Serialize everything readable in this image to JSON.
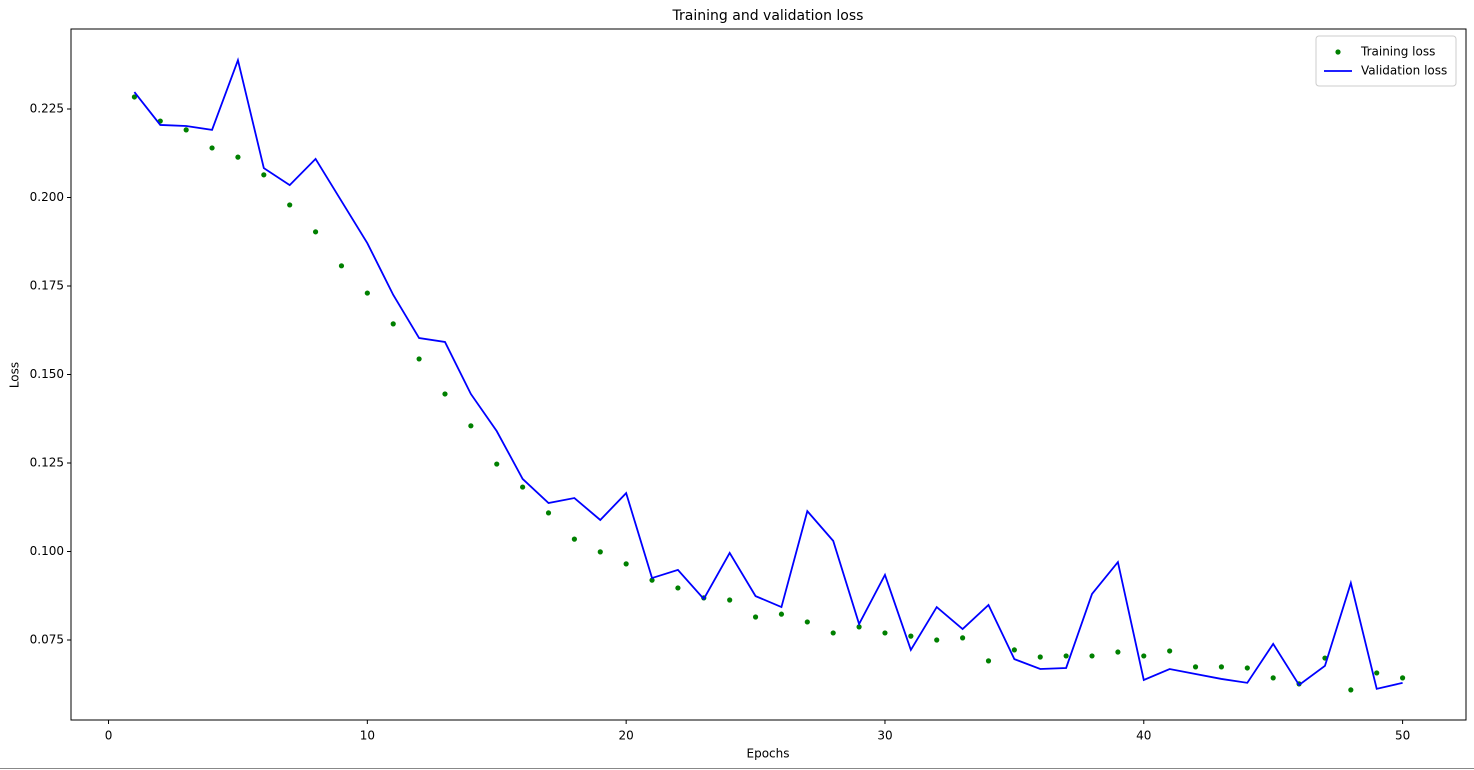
{
  "chart_data": {
    "type": "line",
    "title": "Training and validation loss",
    "x_label": "Epochs",
    "y_label": "Loss",
    "x": [
      1,
      2,
      3,
      4,
      5,
      6,
      7,
      8,
      9,
      10,
      11,
      12,
      13,
      14,
      15,
      16,
      17,
      18,
      19,
      20,
      21,
      22,
      23,
      24,
      25,
      26,
      27,
      28,
      29,
      30,
      31,
      32,
      33,
      34,
      35,
      36,
      37,
      38,
      39,
      40,
      41,
      42,
      43,
      44,
      45,
      46,
      47,
      48,
      49,
      50
    ],
    "series": [
      {
        "name": "Training loss",
        "color": "#008000",
        "mode": "markers",
        "values": [
          0.2284,
          0.2216,
          0.2191,
          0.214,
          0.2114,
          0.2064,
          0.1979,
          0.1903,
          0.1807,
          0.173,
          0.1643,
          0.1544,
          0.1445,
          0.1355,
          0.1247,
          0.1182,
          0.1109,
          0.1035,
          0.0999,
          0.0965,
          0.0919,
          0.0897,
          0.0869,
          0.0863,
          0.0815,
          0.0823,
          0.0801,
          0.077,
          0.0787,
          0.077,
          0.0761,
          0.075,
          0.0756,
          0.0691,
          0.0722,
          0.0702,
          0.0705,
          0.0705,
          0.0716,
          0.0705,
          0.0719,
          0.0674,
          0.0674,
          0.0671,
          0.0643,
          0.0626,
          0.0699,
          0.0609,
          0.0657,
          0.0643
        ]
      },
      {
        "name": "Validation loss",
        "color": "#0000ff",
        "mode": "line",
        "values": [
          0.2298,
          0.2205,
          0.2202,
          0.2191,
          0.2388,
          0.2083,
          0.2035,
          0.2109,
          0.199,
          0.1871,
          0.1725,
          0.1603,
          0.1592,
          0.1445,
          0.134,
          0.1205,
          0.1137,
          0.1151,
          0.1089,
          0.1165,
          0.0925,
          0.0948,
          0.0866,
          0.0996,
          0.0874,
          0.0843,
          0.1114,
          0.103,
          0.0795,
          0.0934,
          0.0722,
          0.0843,
          0.0781,
          0.0849,
          0.0696,
          0.0668,
          0.0671,
          0.088,
          0.097,
          0.0637,
          0.0668,
          0.0654,
          0.064,
          0.0629,
          0.0739,
          0.0623,
          0.0677,
          0.0911,
          0.0612,
          0.0629
        ]
      }
    ],
    "xlim": [
      -1.45,
      52.45
    ],
    "xticks": [
      0,
      10,
      20,
      30,
      40,
      50
    ],
    "ylim": [
      0.0524,
      0.2476
    ],
    "yticks": [
      0.075,
      {
        "value": 0.1,
        "label": "0.100"
      },
      0.125,
      {
        "value": 0.15,
        "label": "0.150"
      },
      0.175,
      {
        "value": 0.2,
        "label": "0.200"
      },
      0.225
    ],
    "grid": false,
    "legend": "upper right"
  }
}
